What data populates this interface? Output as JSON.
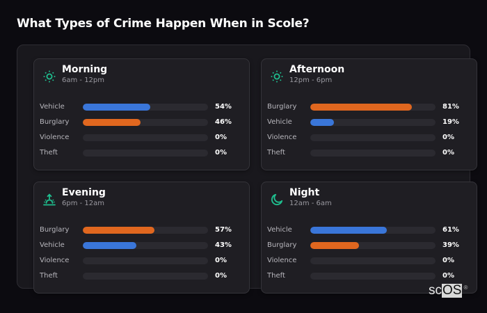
{
  "page": {
    "title": "What Types of Crime Happen When in Scole?"
  },
  "colors": {
    "background": "#0c0b10",
    "accent_icon": "#1fbf8f",
    "vehicle": "#3a76d9",
    "burglary": "#e0671f",
    "track": "#2b2a30"
  },
  "cards": [
    {
      "title": "Morning",
      "subtitle": "6am - 12pm",
      "icon": "sun-icon",
      "rows": [
        {
          "label": "Vehicle",
          "value": "54%",
          "pct": 54,
          "color": "#3a76d9"
        },
        {
          "label": "Burglary",
          "value": "46%",
          "pct": 46,
          "color": "#e0671f"
        },
        {
          "label": "Violence",
          "value": "0%",
          "pct": 0,
          "color": "#3a76d9"
        },
        {
          "label": "Theft",
          "value": "0%",
          "pct": 0,
          "color": "#3a76d9"
        }
      ]
    },
    {
      "title": "Afternoon",
      "subtitle": "12pm - 6pm",
      "icon": "sun-icon",
      "rows": [
        {
          "label": "Burglary",
          "value": "81%",
          "pct": 81,
          "color": "#e0671f"
        },
        {
          "label": "Vehicle",
          "value": "19%",
          "pct": 19,
          "color": "#3a76d9"
        },
        {
          "label": "Violence",
          "value": "0%",
          "pct": 0,
          "color": "#3a76d9"
        },
        {
          "label": "Theft",
          "value": "0%",
          "pct": 0,
          "color": "#3a76d9"
        }
      ]
    },
    {
      "title": "Evening",
      "subtitle": "6pm - 12am",
      "icon": "sunset-icon",
      "rows": [
        {
          "label": "Burglary",
          "value": "57%",
          "pct": 57,
          "color": "#e0671f"
        },
        {
          "label": "Vehicle",
          "value": "43%",
          "pct": 43,
          "color": "#3a76d9"
        },
        {
          "label": "Violence",
          "value": "0%",
          "pct": 0,
          "color": "#3a76d9"
        },
        {
          "label": "Theft",
          "value": "0%",
          "pct": 0,
          "color": "#3a76d9"
        }
      ]
    },
    {
      "title": "Night",
      "subtitle": "12am - 6am",
      "icon": "moon-icon",
      "rows": [
        {
          "label": "Vehicle",
          "value": "61%",
          "pct": 61,
          "color": "#3a76d9"
        },
        {
          "label": "Burglary",
          "value": "39%",
          "pct": 39,
          "color": "#e0671f"
        },
        {
          "label": "Violence",
          "value": "0%",
          "pct": 0,
          "color": "#3a76d9"
        },
        {
          "label": "Theft",
          "value": "0%",
          "pct": 0,
          "color": "#3a76d9"
        }
      ]
    }
  ],
  "logo": {
    "prefix": "sc",
    "highlight": "OS",
    "mark": "®"
  }
}
